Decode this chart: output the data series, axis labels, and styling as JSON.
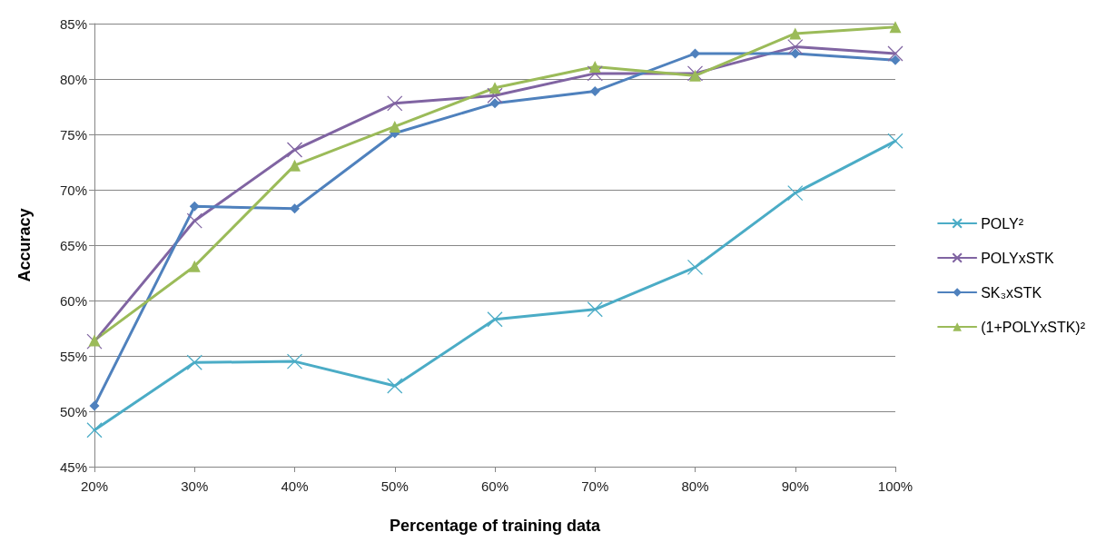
{
  "chart_data": {
    "type": "line",
    "xlabel": "Percentage of training data",
    "ylabel": "Accuracy",
    "categories": [
      "20%",
      "30%",
      "40%",
      "50%",
      "60%",
      "70%",
      "80%",
      "90%",
      "100%"
    ],
    "ylim": [
      45,
      85
    ],
    "yticks": [
      {
        "value": 45,
        "label": "45%"
      },
      {
        "value": 50,
        "label": "50%"
      },
      {
        "value": 55,
        "label": "55%"
      },
      {
        "value": 60,
        "label": "60%"
      },
      {
        "value": 65,
        "label": "65%"
      },
      {
        "value": 70,
        "label": "70%"
      },
      {
        "value": 75,
        "label": "75%"
      },
      {
        "value": 80,
        "label": "80%"
      },
      {
        "value": 85,
        "label": "85%"
      }
    ],
    "grid": "y",
    "legend": "right",
    "line_style": "solid",
    "series": [
      {
        "name": "POLY²",
        "color": "#4bacc6",
        "marker": "cross",
        "values": [
          48.3,
          54.4,
          54.5,
          52.3,
          58.3,
          59.2,
          63.0,
          69.7,
          74.4
        ]
      },
      {
        "name": "POLYxSTK",
        "color": "#8064a2",
        "marker": "cross",
        "values": [
          56.3,
          67.2,
          73.6,
          77.8,
          78.5,
          80.5,
          80.5,
          82.9,
          82.3
        ]
      },
      {
        "name": "SK₃xSTK",
        "color": "#4f81bd",
        "marker": "diamond",
        "values": [
          50.5,
          68.5,
          68.3,
          75.1,
          77.8,
          78.9,
          82.3,
          82.3,
          81.7
        ]
      },
      {
        "name": "(1+POLYxSTK)²",
        "color": "#9bbb59",
        "marker": "triangle",
        "values": [
          56.4,
          63.1,
          72.2,
          75.7,
          79.2,
          81.1,
          80.3,
          84.1,
          84.7
        ]
      }
    ]
  }
}
